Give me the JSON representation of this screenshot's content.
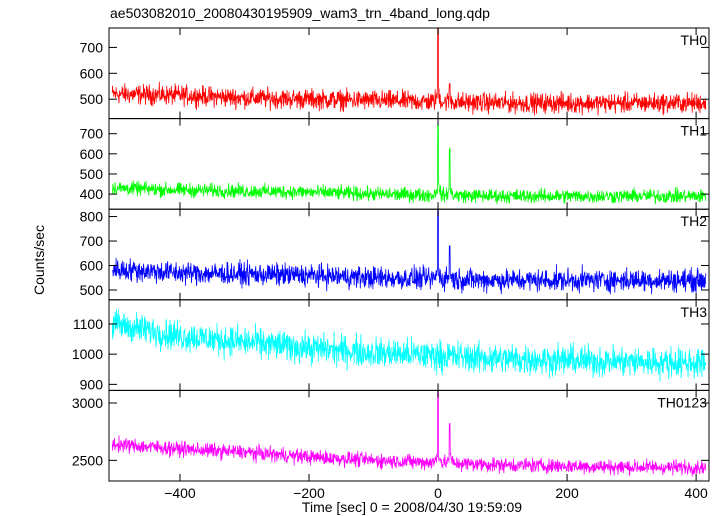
{
  "chart_data": {
    "type": "line",
    "title": "ae503082010_20080430195909_wam3_trn_4band_long.qdp",
    "xlabel": "Time [sec] 0 = 2008/04/30 19:59:09",
    "ylabel": "Counts/sec",
    "xlim": [
      -510,
      420
    ],
    "x_ticks": [
      -400,
      -200,
      0,
      200,
      400
    ],
    "panels": [
      {
        "name": "TH0",
        "color": "#ff0000",
        "ylim": [
          425,
          775
        ],
        "y_ticks": [
          500,
          600,
          700
        ],
        "baseline": [
          [
            -505,
            520
          ],
          [
            -400,
            515
          ],
          [
            -300,
            505
          ],
          [
            -200,
            500
          ],
          [
            -100,
            495
          ],
          [
            0,
            490
          ],
          [
            100,
            485
          ],
          [
            200,
            485
          ],
          [
            300,
            485
          ],
          [
            415,
            485
          ]
        ],
        "noise": 42,
        "spikes": [
          [
            0,
            775
          ],
          [
            18,
            560
          ]
        ]
      },
      {
        "name": "TH1",
        "color": "#00ff00",
        "ylim": [
          325,
          775
        ],
        "y_ticks": [
          400,
          500,
          600,
          700
        ],
        "baseline": [
          [
            -505,
            430
          ],
          [
            -400,
            420
          ],
          [
            -300,
            415
          ],
          [
            -200,
            410
          ],
          [
            -100,
            400
          ],
          [
            0,
            395
          ],
          [
            100,
            390
          ],
          [
            200,
            390
          ],
          [
            300,
            390
          ],
          [
            415,
            390
          ]
        ],
        "noise": 38,
        "spikes": [
          [
            0,
            740
          ],
          [
            18,
            625
          ]
        ]
      },
      {
        "name": "TH2",
        "color": "#0000ff",
        "ylim": [
          460,
          830
        ],
        "y_ticks": [
          500,
          600,
          700,
          800
        ],
        "baseline": [
          [
            -505,
            585
          ],
          [
            -400,
            570
          ],
          [
            -300,
            565
          ],
          [
            -200,
            560
          ],
          [
            -100,
            550
          ],
          [
            0,
            545
          ],
          [
            100,
            540
          ],
          [
            200,
            540
          ],
          [
            300,
            540
          ],
          [
            415,
            540
          ]
        ],
        "noise": 50,
        "spikes": [
          [
            0,
            830
          ],
          [
            18,
            680
          ]
        ]
      },
      {
        "name": "TH3",
        "color": "#00ffff",
        "ylim": [
          880,
          1180
        ],
        "y_ticks": [
          900,
          1000,
          1100
        ],
        "baseline": [
          [
            -505,
            1100
          ],
          [
            -400,
            1060
          ],
          [
            -300,
            1040
          ],
          [
            -200,
            1020
          ],
          [
            -100,
            1005
          ],
          [
            0,
            995
          ],
          [
            100,
            985
          ],
          [
            200,
            980
          ],
          [
            300,
            975
          ],
          [
            415,
            970
          ]
        ],
        "noise": 55,
        "spikes": []
      },
      {
        "name": "TH0123",
        "color": "#ff00ff",
        "ylim": [
          2320,
          3110
        ],
        "y_ticks": [
          2500,
          3000
        ],
        "baseline": [
          [
            -505,
            2640
          ],
          [
            -400,
            2600
          ],
          [
            -300,
            2570
          ],
          [
            -200,
            2530
          ],
          [
            -100,
            2500
          ],
          [
            0,
            2480
          ],
          [
            100,
            2460
          ],
          [
            200,
            2450
          ],
          [
            300,
            2440
          ],
          [
            415,
            2440
          ]
        ],
        "noise": 70,
        "spikes": [
          [
            0,
            3100
          ],
          [
            18,
            2820
          ]
        ]
      }
    ]
  }
}
